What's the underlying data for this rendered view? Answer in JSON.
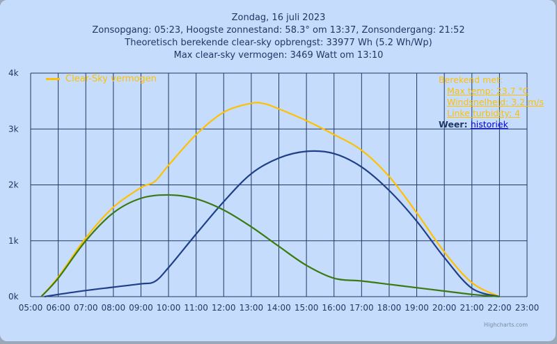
{
  "header": {
    "line1": "Zondag, 16 juli 2023",
    "line2": "Zonsopgang: 05:23, Hoogste zonnestand: 58.3° om 13:37, Zonsondergang: 21:52",
    "line3": "Theoretisch berekende clear-sky opbrengst: 33977 Wh (5.2 Wh/Wp)",
    "line4": "Max clear-sky vermogen: 3469 Watt om 13:10"
  },
  "info": {
    "title": "Berekend met:",
    "max_temp": "Max temp: 23.7 °C",
    "wind": "Windsnelheid: 3.2 m/s",
    "turbidity": "Linke turbidity: 4",
    "weer_label": "Weer:",
    "weer_link": "historiek"
  },
  "credit": "Highcharts.com",
  "chart_data": {
    "type": "line",
    "xlim": [
      "05:00",
      "23:00"
    ],
    "ylim": [
      0,
      4000
    ],
    "grid": true,
    "legend_placement": "top-left",
    "x_ticks": [
      "05:00",
      "06:00",
      "07:00",
      "08:00",
      "09:00",
      "10:00",
      "11:00",
      "12:00",
      "13:00",
      "14:00",
      "15:00",
      "16:00",
      "17:00",
      "18:00",
      "19:00",
      "20:00",
      "21:00",
      "22:00",
      "23:00"
    ],
    "y_ticks": [
      "0k",
      "1k",
      "2k",
      "3k",
      "4k"
    ],
    "series": [
      {
        "name": "Clear-Sky vermogen",
        "color": "#ffc000",
        "points": [
          [
            "05:23",
            0
          ],
          [
            "06:00",
            350
          ],
          [
            "07:00",
            1050
          ],
          [
            "08:00",
            1600
          ],
          [
            "09:00",
            1950
          ],
          [
            "09:30",
            2060
          ],
          [
            "10:00",
            2350
          ],
          [
            "11:00",
            2900
          ],
          [
            "12:00",
            3300
          ],
          [
            "13:00",
            3460
          ],
          [
            "13:30",
            3450
          ],
          [
            "14:00",
            3360
          ],
          [
            "15:00",
            3150
          ],
          [
            "16:00",
            2900
          ],
          [
            "17:00",
            2620
          ],
          [
            "18:00",
            2150
          ],
          [
            "19:00",
            1500
          ],
          [
            "20:00",
            800
          ],
          [
            "21:00",
            250
          ],
          [
            "22:00",
            0
          ]
        ]
      },
      {
        "color": "#1f3f8a",
        "points": [
          [
            "05:30",
            0
          ],
          [
            "06:00",
            40
          ],
          [
            "07:00",
            110
          ],
          [
            "08:00",
            170
          ],
          [
            "09:00",
            230
          ],
          [
            "09:30",
            270
          ],
          [
            "10:00",
            520
          ],
          [
            "11:00",
            1120
          ],
          [
            "12:00",
            1700
          ],
          [
            "13:00",
            2200
          ],
          [
            "14:00",
            2480
          ],
          [
            "15:00",
            2600
          ],
          [
            "16:00",
            2560
          ],
          [
            "17:00",
            2320
          ],
          [
            "18:00",
            1900
          ],
          [
            "19:00",
            1350
          ],
          [
            "20:00",
            700
          ],
          [
            "21:00",
            150
          ],
          [
            "22:00",
            0
          ]
        ]
      },
      {
        "color": "#3a7a10",
        "points": [
          [
            "05:23",
            0
          ],
          [
            "06:00",
            330
          ],
          [
            "07:00",
            1000
          ],
          [
            "08:00",
            1500
          ],
          [
            "09:00",
            1760
          ],
          [
            "10:00",
            1820
          ],
          [
            "11:00",
            1750
          ],
          [
            "12:00",
            1550
          ],
          [
            "13:00",
            1250
          ],
          [
            "14:00",
            900
          ],
          [
            "15:00",
            560
          ],
          [
            "16:00",
            330
          ],
          [
            "17:00",
            280
          ],
          [
            "18:00",
            220
          ],
          [
            "19:00",
            160
          ],
          [
            "20:00",
            100
          ],
          [
            "21:00",
            40
          ],
          [
            "22:00",
            0
          ]
        ]
      }
    ]
  }
}
